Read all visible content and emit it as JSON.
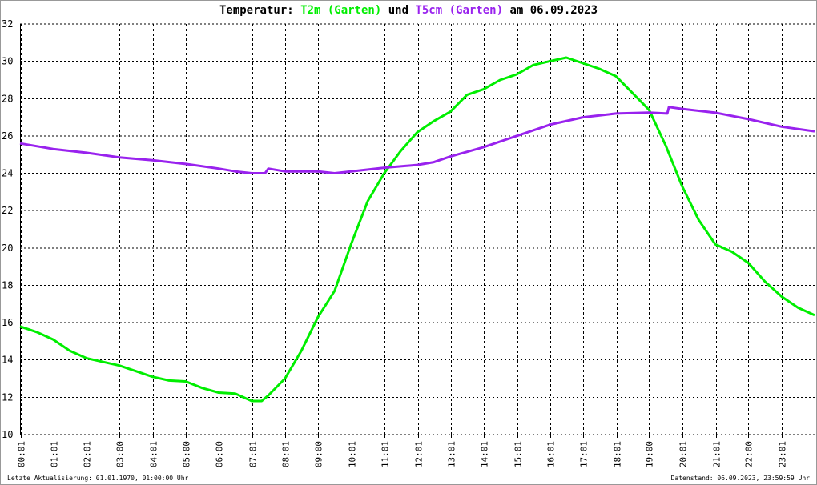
{
  "chart_data": {
    "type": "line",
    "title": {
      "prefix": "Temperatur: ",
      "series1": "T2m (Garten)",
      "mid": " und ",
      "series2": "T5cm (Garten)",
      "suffix": " am 06.09.2023"
    },
    "xlabel": "",
    "ylabel": "",
    "xlim": [
      0,
      24
    ],
    "ylim": [
      10,
      32
    ],
    "grid": true,
    "yticks": [
      10,
      12,
      14,
      16,
      18,
      20,
      22,
      24,
      26,
      28,
      30,
      32
    ],
    "xticks": [
      {
        "h": 0.017,
        "label": "00:01"
      },
      {
        "h": 1.017,
        "label": "01:01"
      },
      {
        "h": 2.017,
        "label": "02:01"
      },
      {
        "h": 3.0,
        "label": "03:00"
      },
      {
        "h": 4.017,
        "label": "04:01"
      },
      {
        "h": 5.0,
        "label": "05:00"
      },
      {
        "h": 6.0,
        "label": "06:00"
      },
      {
        "h": 7.017,
        "label": "07:01"
      },
      {
        "h": 8.017,
        "label": "08:01"
      },
      {
        "h": 9.0,
        "label": "09:00"
      },
      {
        "h": 10.017,
        "label": "10:01"
      },
      {
        "h": 11.017,
        "label": "11:01"
      },
      {
        "h": 12.017,
        "label": "12:01"
      },
      {
        "h": 13.017,
        "label": "13:01"
      },
      {
        "h": 14.017,
        "label": "14:01"
      },
      {
        "h": 15.017,
        "label": "15:01"
      },
      {
        "h": 16.017,
        "label": "16:01"
      },
      {
        "h": 17.017,
        "label": "17:01"
      },
      {
        "h": 18.017,
        "label": "18:01"
      },
      {
        "h": 19.0,
        "label": "19:00"
      },
      {
        "h": 20.017,
        "label": "20:01"
      },
      {
        "h": 21.017,
        "label": "21:01"
      },
      {
        "h": 22.0,
        "label": "22:00"
      },
      {
        "h": 23.017,
        "label": "23:01"
      }
    ],
    "series": [
      {
        "name": "T2m (Garten)",
        "color": "#00ee00",
        "x": [
          0,
          0.5,
          1,
          1.5,
          2,
          2.5,
          3,
          3.5,
          4,
          4.5,
          5,
          5.5,
          6,
          6.5,
          7,
          7.3,
          7.5,
          8,
          8.5,
          9,
          9.5,
          10,
          10.5,
          11,
          11.5,
          12,
          12.5,
          13,
          13.5,
          14,
          14.5,
          15,
          15.5,
          16,
          16.5,
          17,
          17.5,
          18,
          18.5,
          19,
          19.5,
          20,
          20.5,
          21,
          21.5,
          22,
          22.5,
          23,
          23.5,
          24
        ],
        "values": [
          15.8,
          15.5,
          15.1,
          14.5,
          14.1,
          13.9,
          13.7,
          13.4,
          13.1,
          12.9,
          12.85,
          12.5,
          12.25,
          12.2,
          11.8,
          11.8,
          12.1,
          13.0,
          14.5,
          16.3,
          17.7,
          20.2,
          22.5,
          24.0,
          25.2,
          26.2,
          26.8,
          27.3,
          28.2,
          28.5,
          29.0,
          29.3,
          29.8,
          30.0,
          30.2,
          29.9,
          29.6,
          29.2,
          28.3,
          27.4,
          25.5,
          23.3,
          21.5,
          20.2,
          19.8,
          19.2,
          18.2,
          17.4,
          16.8,
          16.4
        ]
      },
      {
        "name": "T5cm (Garten)",
        "color": "#9922ee",
        "x": [
          0,
          1,
          2,
          3,
          4,
          5,
          6,
          6.5,
          7,
          7.4,
          7.5,
          8,
          9,
          9.5,
          10,
          11,
          12,
          12.5,
          13,
          14,
          15,
          16,
          17,
          18,
          19,
          19.55,
          19.6,
          20,
          21,
          22,
          23,
          24
        ],
        "values": [
          25.6,
          25.3,
          25.1,
          24.85,
          24.7,
          24.5,
          24.25,
          24.1,
          24.0,
          24.0,
          24.25,
          24.1,
          24.1,
          24.0,
          24.1,
          24.3,
          24.45,
          24.6,
          24.9,
          25.4,
          26.0,
          26.6,
          27.0,
          27.2,
          27.25,
          27.2,
          27.55,
          27.45,
          27.25,
          26.9,
          26.5,
          26.25
        ]
      }
    ]
  },
  "footer": {
    "last_update": "Letzte Aktualisierung: 01.01.1970, 01:00:00 Uhr",
    "data_state": "Datenstand: 06.09.2023, 23:59:59 Uhr"
  }
}
